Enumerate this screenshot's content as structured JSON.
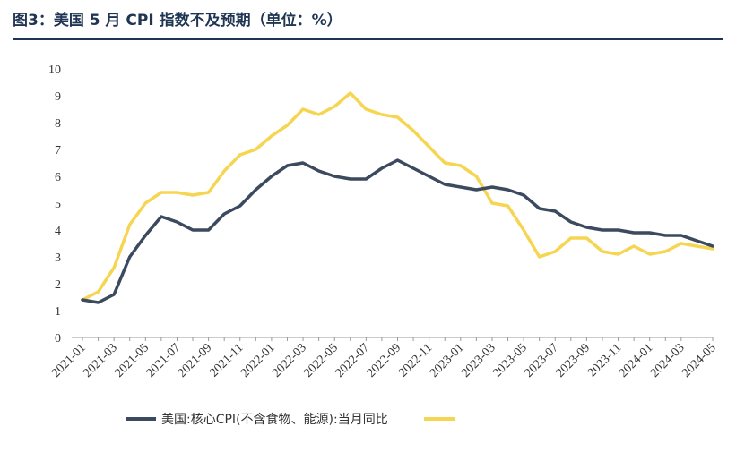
{
  "header": {
    "title": "图3：美国 5 月 CPI 指数不及预期（单位：%）"
  },
  "colors": {
    "core": "#3b4a5e",
    "headline": "#f5d552",
    "axis": "#999999"
  },
  "chart_data": {
    "type": "line",
    "title": "图3：美国 5 月 CPI 指数不及预期（单位：%）",
    "xlabel": "",
    "ylabel": "",
    "ylim": [
      0,
      10
    ],
    "yticks": [
      0,
      1,
      2,
      3,
      4,
      5,
      6,
      7,
      8,
      9,
      10
    ],
    "grid": false,
    "legend_position": "bottom",
    "x": [
      "2021-01",
      "2021-02",
      "2021-03",
      "2021-04",
      "2021-05",
      "2021-06",
      "2021-07",
      "2021-08",
      "2021-09",
      "2021-10",
      "2021-11",
      "2021-12",
      "2022-01",
      "2022-02",
      "2022-03",
      "2022-04",
      "2022-05",
      "2022-06",
      "2022-07",
      "2022-08",
      "2022-09",
      "2022-10",
      "2022-11",
      "2022-12",
      "2023-01",
      "2023-02",
      "2023-03",
      "2023-04",
      "2023-05",
      "2023-06",
      "2023-07",
      "2023-08",
      "2023-09",
      "2023-10",
      "2023-11",
      "2023-12",
      "2024-01",
      "2024-02",
      "2024-03",
      "2024-04",
      "2024-05"
    ],
    "xtick_labels": [
      "2021-01",
      "2021-03",
      "2021-05",
      "2021-07",
      "2021-09",
      "2021-11",
      "2022-01",
      "2022-03",
      "2022-05",
      "2022-07",
      "2022-09",
      "2022-11",
      "2023-01",
      "2023-03",
      "2023-05",
      "2023-07",
      "2023-09",
      "2023-11",
      "2024-01",
      "2024-03",
      "2024-05"
    ],
    "series": [
      {
        "name": "美国:核心CPI(不含食物、能源):当月同比",
        "values": [
          1.4,
          1.3,
          1.6,
          3.0,
          3.8,
          4.5,
          4.3,
          4.0,
          4.0,
          4.6,
          4.9,
          5.5,
          6.0,
          6.4,
          6.5,
          6.2,
          6.0,
          5.9,
          5.9,
          6.3,
          6.6,
          6.3,
          6.0,
          5.7,
          5.6,
          5.5,
          5.6,
          5.5,
          5.3,
          4.8,
          4.7,
          4.3,
          4.1,
          4.0,
          4.0,
          3.9,
          3.9,
          3.8,
          3.8,
          3.6,
          3.4
        ]
      },
      {
        "name": "",
        "values": [
          1.4,
          1.7,
          2.6,
          4.2,
          5.0,
          5.4,
          5.4,
          5.3,
          5.4,
          6.2,
          6.8,
          7.0,
          7.5,
          7.9,
          8.5,
          8.3,
          8.6,
          9.1,
          8.5,
          8.3,
          8.2,
          7.7,
          7.1,
          6.5,
          6.4,
          6.0,
          5.0,
          4.9,
          4.0,
          3.0,
          3.2,
          3.7,
          3.7,
          3.2,
          3.1,
          3.4,
          3.1,
          3.2,
          3.5,
          3.4,
          3.3
        ]
      }
    ]
  }
}
